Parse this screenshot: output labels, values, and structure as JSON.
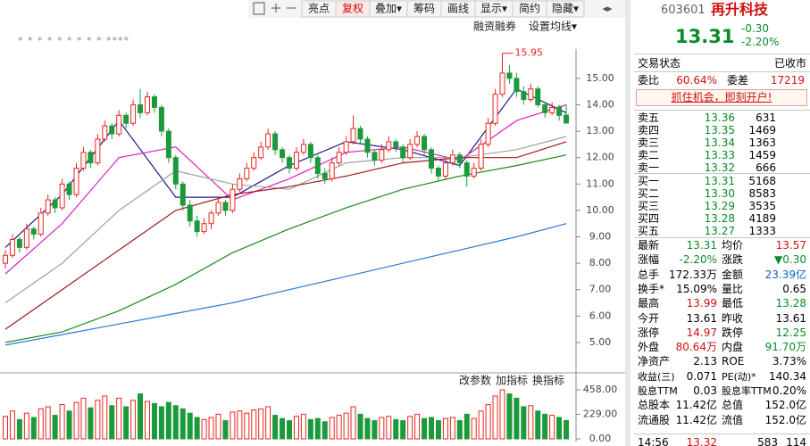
{
  "toolbar": [
    "亮点",
    "复权",
    "叠加▾",
    "筹码",
    "画线",
    "显示▾",
    "简约",
    "隐藏▾"
  ],
  "toolbar_active": "复权",
  "chart_tools": [
    "融资融券",
    "设置均线▾"
  ],
  "markers": "*      *     *      *     *     *    *   *   *   ****",
  "chart_data": {
    "type": "candlestick",
    "ylim": [
      4.12,
      16.11
    ],
    "yticks": [
      {
        "value": 15,
        "label": "15.00"
      },
      {
        "value": 14,
        "label": "14.00"
      },
      {
        "value": 13,
        "label": "13.00"
      },
      {
        "value": 12,
        "label": "12.00"
      },
      {
        "value": 11,
        "label": "11.00"
      },
      {
        "value": 10,
        "label": "10.00"
      },
      {
        "value": 9,
        "label": "9.00"
      },
      {
        "value": 8,
        "label": "8.00"
      },
      {
        "value": 7,
        "label": "7.00"
      },
      {
        "value": 6,
        "label": "6.00"
      },
      {
        "value": 5,
        "label": "5.00"
      }
    ],
    "up_color": "#e8261f",
    "down_color": "#1b9a3c",
    "candles": [
      [
        8.0,
        8.5,
        7.8,
        8.3
      ],
      [
        8.3,
        9.1,
        8.2,
        8.9
      ],
      [
        8.9,
        9.0,
        8.4,
        8.6
      ],
      [
        8.6,
        9.5,
        8.5,
        9.3
      ],
      [
        9.3,
        9.4,
        8.9,
        9.1
      ],
      [
        9.1,
        10.1,
        9.0,
        9.9
      ],
      [
        9.9,
        10.6,
        9.8,
        10.4
      ],
      [
        10.4,
        10.5,
        9.9,
        10.1
      ],
      [
        10.1,
        11.2,
        10.0,
        11.0
      ],
      [
        11.0,
        11.1,
        10.4,
        10.6
      ],
      [
        10.6,
        11.8,
        10.5,
        11.6
      ],
      [
        11.6,
        12.4,
        11.5,
        12.2
      ],
      [
        12.2,
        12.3,
        11.6,
        11.8
      ],
      [
        11.8,
        12.9,
        11.7,
        12.7
      ],
      [
        12.7,
        13.4,
        12.6,
        13.2
      ],
      [
        13.2,
        13.3,
        12.7,
        12.9
      ],
      [
        12.9,
        13.8,
        12.8,
        13.6
      ],
      [
        13.6,
        13.7,
        13.1,
        13.3
      ],
      [
        13.3,
        14.2,
        13.2,
        14.0
      ],
      [
        14.0,
        14.6,
        13.5,
        13.7
      ],
      [
        13.7,
        14.5,
        13.6,
        14.3
      ],
      [
        14.3,
        14.4,
        13.7,
        13.9
      ],
      [
        13.9,
        14.0,
        12.8,
        13.0
      ],
      [
        13.0,
        13.1,
        11.8,
        12.0
      ],
      [
        12.0,
        12.1,
        10.8,
        11.0
      ],
      [
        11.0,
        11.1,
        10.0,
        10.2
      ],
      [
        10.2,
        10.4,
        9.4,
        9.6
      ],
      [
        9.6,
        9.8,
        9.0,
        9.2
      ],
      [
        9.2,
        9.7,
        9.1,
        9.5
      ],
      [
        9.5,
        10.0,
        9.3,
        9.9
      ],
      [
        9.9,
        10.5,
        9.8,
        10.3
      ],
      [
        10.3,
        10.4,
        9.8,
        10.0
      ],
      [
        10.0,
        11.0,
        9.9,
        10.8
      ],
      [
        10.8,
        11.4,
        10.7,
        11.2
      ],
      [
        11.2,
        11.8,
        11.1,
        11.6
      ],
      [
        11.6,
        12.2,
        11.5,
        12.0
      ],
      [
        12.0,
        12.6,
        11.9,
        12.4
      ],
      [
        12.4,
        13.1,
        12.3,
        12.9
      ],
      [
        12.9,
        13.0,
        12.1,
        12.3
      ],
      [
        12.3,
        12.4,
        11.8,
        12.0
      ],
      [
        12.0,
        12.1,
        11.4,
        11.6
      ],
      [
        11.6,
        12.4,
        11.5,
        12.2
      ],
      [
        12.2,
        12.7,
        12.1,
        12.5
      ],
      [
        12.5,
        12.6,
        11.8,
        12.0
      ],
      [
        12.0,
        12.1,
        11.2,
        11.4
      ],
      [
        11.4,
        11.6,
        11.0,
        11.2
      ],
      [
        11.2,
        12.0,
        11.1,
        11.8
      ],
      [
        11.8,
        12.4,
        11.7,
        12.2
      ],
      [
        12.2,
        12.8,
        12.1,
        12.6
      ],
      [
        12.6,
        13.6,
        12.5,
        13.1
      ],
      [
        13.1,
        13.2,
        12.5,
        12.7
      ],
      [
        12.7,
        12.8,
        12.0,
        12.2
      ],
      [
        12.2,
        12.3,
        11.7,
        11.9
      ],
      [
        11.9,
        12.5,
        11.8,
        12.3
      ],
      [
        12.3,
        12.8,
        12.2,
        12.6
      ],
      [
        12.6,
        12.7,
        12.2,
        12.4
      ],
      [
        12.4,
        12.5,
        11.8,
        12.0
      ],
      [
        12.0,
        12.7,
        11.9,
        12.5
      ],
      [
        12.5,
        13.0,
        12.4,
        12.8
      ],
      [
        12.8,
        12.9,
        12.1,
        12.3
      ],
      [
        12.3,
        12.4,
        11.4,
        11.6
      ],
      [
        11.6,
        11.7,
        11.1,
        11.3
      ],
      [
        11.3,
        12.0,
        11.2,
        11.8
      ],
      [
        11.8,
        12.3,
        11.7,
        12.1
      ],
      [
        12.1,
        12.2,
        11.6,
        11.8
      ],
      [
        11.8,
        11.9,
        10.9,
        11.3
      ],
      [
        11.3,
        11.8,
        11.2,
        11.6
      ],
      [
        11.6,
        12.7,
        11.5,
        12.5
      ],
      [
        12.5,
        13.5,
        12.4,
        13.3
      ],
      [
        13.3,
        14.6,
        13.2,
        14.4
      ],
      [
        14.4,
        15.95,
        14.3,
        15.2
      ],
      [
        15.2,
        15.5,
        14.8,
        15.0
      ],
      [
        15.0,
        15.2,
        14.3,
        14.5
      ],
      [
        14.5,
        14.7,
        14.0,
        14.2
      ],
      [
        14.2,
        14.8,
        14.1,
        14.6
      ],
      [
        14.6,
        14.7,
        13.9,
        14.0
      ],
      [
        14.0,
        14.1,
        13.5,
        13.7
      ],
      [
        13.7,
        14.1,
        13.6,
        13.9
      ],
      [
        13.9,
        14.0,
        13.4,
        13.6
      ],
      [
        13.61,
        13.99,
        13.28,
        13.31
      ]
    ],
    "max_label": {
      "value": 15.95,
      "label": "15.95"
    },
    "ma_index": [
      0,
      8,
      16,
      24,
      32,
      40,
      48,
      56,
      64,
      72,
      79
    ],
    "ma": [
      {
        "color": "#1a1a8c",
        "values": [
          8.6,
          10.6,
          13.4,
          10.5,
          10.5,
          11.7,
          12.6,
          12.3,
          11.7,
          14.6,
          13.7
        ]
      },
      {
        "color": "#e020c0",
        "values": [
          7.6,
          9.5,
          12.0,
          12.4,
          10.4,
          11.2,
          12.2,
          12.4,
          11.9,
          13.4,
          14.0
        ]
      },
      {
        "color": "#a0a0a0",
        "values": [
          6.5,
          8.0,
          10.0,
          11.5,
          11.0,
          10.8,
          11.8,
          12.0,
          12.0,
          12.3,
          12.8
        ]
      },
      {
        "color": "#a01818",
        "values": [
          5.5,
          7.0,
          8.5,
          10.0,
          10.6,
          10.9,
          11.3,
          11.8,
          12.0,
          12.0,
          12.6
        ]
      },
      {
        "color": "#1a8a1a",
        "values": [
          5.0,
          5.4,
          6.2,
          7.2,
          8.4,
          9.3,
          10.1,
          10.8,
          11.3,
          11.7,
          12.1
        ]
      },
      {
        "color": "#2a7ad8",
        "values": [
          4.9,
          5.3,
          5.7,
          6.1,
          6.5,
          7.0,
          7.5,
          8.0,
          8.5,
          9.0,
          9.5
        ]
      }
    ],
    "volume_tools": [
      "改参数",
      "加指标",
      "换指标"
    ],
    "vlim": [
      0,
      458
    ],
    "vticks": [
      {
        "value": 458,
        "label": "458.00"
      },
      {
        "value": 229,
        "label": "229.00"
      },
      {
        "value": 0,
        "label": "0.00"
      }
    ],
    "volume": [
      210,
      260,
      180,
      240,
      200,
      280,
      300,
      220,
      320,
      260,
      340,
      380,
      290,
      360,
      400,
      310,
      380,
      300,
      360,
      420,
      350,
      330,
      300,
      340,
      310,
      280,
      240,
      200,
      180,
      200,
      230,
      170,
      250,
      260,
      240,
      270,
      280,
      300,
      220,
      190,
      170,
      210,
      230,
      180,
      190,
      160,
      200,
      220,
      240,
      300,
      230,
      190,
      170,
      200,
      210,
      180,
      170,
      210,
      230,
      190,
      200,
      170,
      190,
      200,
      170,
      230,
      190,
      260,
      320,
      400,
      458,
      420,
      380,
      300,
      310,
      260,
      230,
      220,
      200,
      172
    ]
  },
  "quote": {
    "code": "603601",
    "name": "再升科技",
    "price": "13.31",
    "change": "-0.30",
    "pct": "-2.20%"
  },
  "status": [
    "交易状态",
    "已收市"
  ],
  "weibi": [
    "委比",
    "60.64%",
    "委差",
    "17219"
  ],
  "ad": "抓住机会，即刻开户!",
  "asks": [
    [
      "卖五",
      "13.36",
      "631"
    ],
    [
      "卖四",
      "13.35",
      "1469"
    ],
    [
      "卖三",
      "13.34",
      "1363"
    ],
    [
      "卖二",
      "13.33",
      "1459"
    ],
    [
      "卖一",
      "13.32",
      "666"
    ]
  ],
  "bids": [
    [
      "买一",
      "13.31",
      "5168"
    ],
    [
      "买二",
      "13.30",
      "8583"
    ],
    [
      "买三",
      "13.29",
      "3535"
    ],
    [
      "买四",
      "13.28",
      "4189"
    ],
    [
      "买五",
      "13.27",
      "1333"
    ]
  ],
  "stats": [
    [
      "最新",
      "13.31",
      "均价",
      "13.57"
    ],
    [
      "涨幅",
      "-2.20%",
      "涨跌",
      "▼0.30"
    ],
    [
      "总手",
      "172.33万",
      "金额",
      "23.39亿"
    ],
    [
      "换手*",
      "15.09%",
      "量比",
      "0.65"
    ],
    [
      "最高",
      "13.99",
      "最低",
      "13.28"
    ],
    [
      "今开",
      "13.61",
      "昨收",
      "13.61"
    ],
    [
      "涨停",
      "14.97",
      "跌停",
      "12.25"
    ],
    [
      "外盘",
      "80.64万",
      "内盘",
      "91.70万"
    ],
    [
      "净资产",
      "2.13",
      "ROE",
      "3.73%"
    ],
    [
      "收益(三)",
      "0.071",
      "PE(动)*",
      "140.34"
    ],
    [
      "股息TTM",
      "0.03",
      "股息率TTM",
      "0.20%"
    ],
    [
      "总股本",
      "11.42亿",
      "总值",
      "152.0亿"
    ],
    [
      "流通股",
      "11.42亿",
      "流值",
      "152.0亿"
    ]
  ],
  "stats_colors": [
    [
      "#0a8a2a",
      "#d01010"
    ],
    [
      "#0a8a2a",
      "#0a8a2a"
    ],
    [
      "#000000",
      "#1060c0"
    ],
    [
      "#000000",
      "#000000"
    ],
    [
      "#d01010",
      "#0a8a2a"
    ],
    [
      "#000000",
      "#000000"
    ],
    [
      "#d01010",
      "#0a8a2a"
    ],
    [
      "#d01010",
      "#0a8a2a"
    ],
    [
      "#000000",
      "#000000"
    ],
    [
      "#000000",
      "#000000"
    ],
    [
      "#000000",
      "#000000"
    ],
    [
      "#000000",
      "#000000"
    ],
    [
      "#000000",
      "#000000"
    ]
  ],
  "last_trade": [
    "14:56",
    "13.32",
    "583",
    "114"
  ]
}
